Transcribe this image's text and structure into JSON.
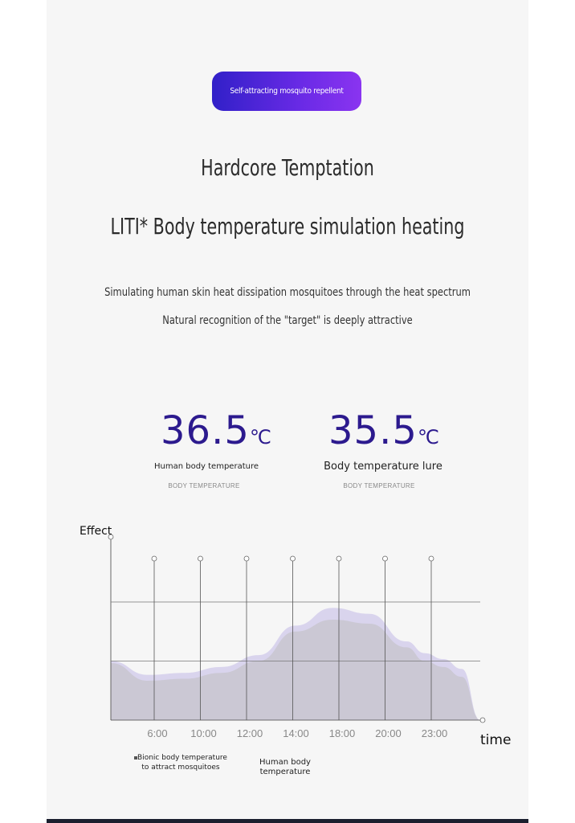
{
  "badge": {
    "text": "Self-attracting mosquito repellent"
  },
  "headline": {
    "title": "Hardcore Temptation",
    "subtitle": "LITI* Body temperature simulation heating"
  },
  "description": {
    "line1": "Simulating human skin heat dissipation mosquitoes through the heat spectrum",
    "line2": "Natural recognition of the \"target\" is deeply attractive"
  },
  "temperatures": [
    {
      "value": "36.5",
      "unit": "℃",
      "label": "Human body temperature",
      "caption": "BODY TEMPERATURE"
    },
    {
      "value": "35.5",
      "unit": "℃",
      "label": "Body temperature lure",
      "caption": "BODY TEMPERATURE"
    }
  ],
  "colors": {
    "accent": "#2c1a8e",
    "badge_start": "#3120c8",
    "badge_end": "#8a34f0",
    "area_front": "#c9c6d0",
    "area_back": "#d7d2ec"
  },
  "chart_data": {
    "type": "area",
    "ylabel": "Effect",
    "xlabel": "time",
    "x": [
      "6:00",
      "10:00",
      "12:00",
      "14:00",
      "18:00",
      "20:00",
      "23:00"
    ],
    "ylim": [
      0,
      4
    ],
    "grid": true,
    "series": [
      {
        "name": "Bionic body temperature to attract mosquitoes",
        "points": [
          [
            0.0,
            1.5
          ],
          [
            1.0,
            1.15
          ],
          [
            2.0,
            1.2
          ],
          [
            3.0,
            1.35
          ],
          [
            4.0,
            1.65
          ],
          [
            5.0,
            2.4
          ],
          [
            6.0,
            2.85
          ],
          [
            7.0,
            2.7
          ],
          [
            8.0,
            2.0
          ],
          [
            8.5,
            1.7
          ],
          [
            9.0,
            1.55
          ],
          [
            9.5,
            1.3
          ],
          [
            10.0,
            0.0
          ]
        ]
      },
      {
        "name": "Human body temperature",
        "points": [
          [
            0.0,
            1.45
          ],
          [
            1.0,
            1.0
          ],
          [
            2.0,
            1.05
          ],
          [
            3.0,
            1.2
          ],
          [
            4.0,
            1.5
          ],
          [
            5.0,
            2.25
          ],
          [
            6.0,
            2.55
          ],
          [
            7.0,
            2.45
          ],
          [
            8.0,
            1.85
          ],
          [
            8.5,
            1.5
          ],
          [
            9.0,
            1.35
          ],
          [
            9.5,
            1.1
          ],
          [
            10.0,
            0.0
          ]
        ]
      }
    ],
    "legend": [
      "Bionic body temperature to attract mosquitoes",
      "Human body temperature"
    ]
  }
}
